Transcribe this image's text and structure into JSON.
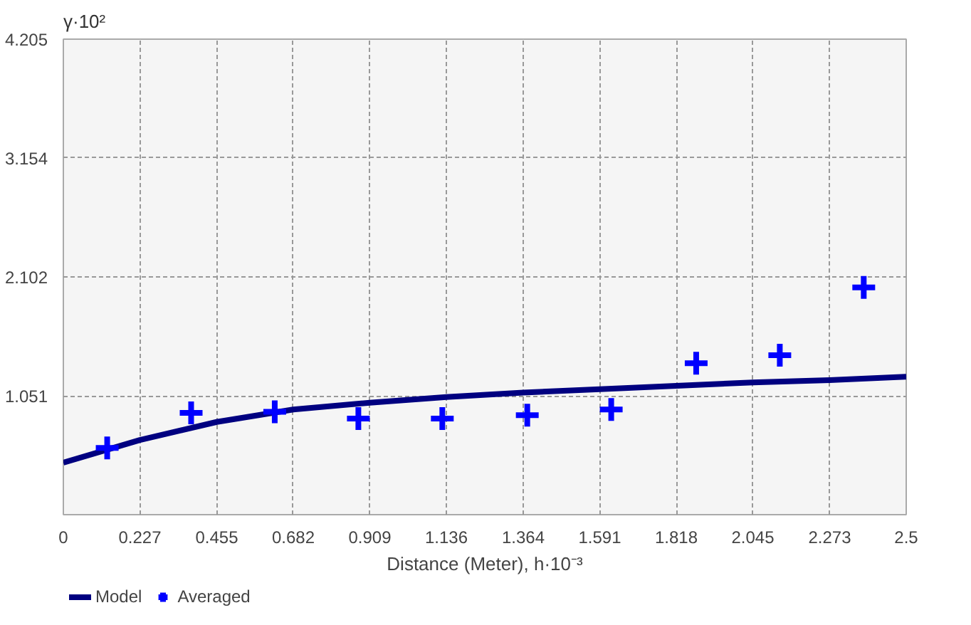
{
  "chart_data": {
    "type": "scatter",
    "ylabel": "γ·10²",
    "xlabel": "Distance (Meter), h·10⁻³",
    "xlim": [
      0,
      2.5
    ],
    "xticks": [
      0,
      0.227,
      0.455,
      0.682,
      0.909,
      1.136,
      1.364,
      1.591,
      1.818,
      2.045,
      2.273,
      2.5
    ],
    "ylim": [
      0,
      4.205
    ],
    "yticks": [
      1.051,
      2.102,
      3.154,
      4.205
    ],
    "grid": true,
    "legend": "bottom left",
    "series": [
      {
        "name": "Model",
        "type": "line",
        "color": "#000080",
        "line_style": "solid",
        "x": [
          0,
          0.227,
          0.455,
          0.682,
          0.909,
          1.136,
          1.364,
          1.591,
          1.818,
          2.045,
          2.273,
          2.5
        ],
        "values": [
          0.46,
          0.66,
          0.82,
          0.93,
          0.99,
          1.04,
          1.08,
          1.11,
          1.14,
          1.17,
          1.19,
          1.22
        ]
      },
      {
        "name": "Averaged",
        "marker": "cross",
        "color": "#0000ff",
        "x": [
          0.13,
          0.379,
          0.627,
          0.875,
          1.124,
          1.376,
          1.625,
          1.877,
          2.125,
          2.374
        ],
        "values": [
          0.59,
          0.9,
          0.91,
          0.85,
          0.85,
          0.88,
          0.93,
          1.34,
          1.41,
          2.01
        ]
      }
    ]
  }
}
